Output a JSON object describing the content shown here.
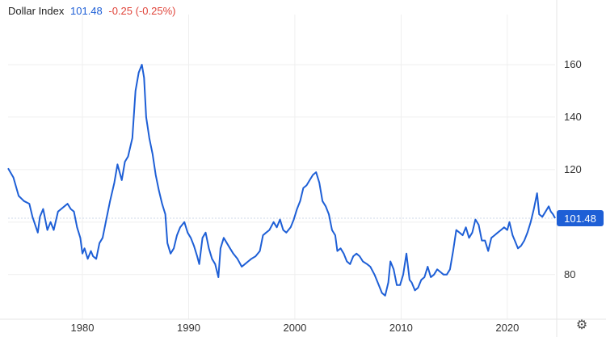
{
  "legend": {
    "title": "Dollar Index",
    "last": "101.48",
    "change": "-0.25 (-0.25%)"
  },
  "colors": {
    "line": "#1e5fd6",
    "accent": "#1e5fd6",
    "down": "#e0443a",
    "grid": "#efefef",
    "ref": "#cfd8ea"
  },
  "icons": {
    "settings": "gear-icon"
  },
  "chart_data": {
    "type": "line",
    "title": "Dollar Index",
    "xlabel": "",
    "ylabel": "",
    "xlim": [
      1973.0,
      2024.5
    ],
    "ylim": [
      63,
      176
    ],
    "x_ticks": [
      "1980",
      "1990",
      "2000",
      "2010",
      "2020"
    ],
    "y_ticks": [
      "80",
      "100",
      "120",
      "140",
      "160"
    ],
    "last_value_label": "101.48",
    "reference_level": 101.48,
    "grid": true,
    "series": [
      {
        "name": "Dollar Index",
        "points": [
          [
            1973.0,
            120.5
          ],
          [
            1973.5,
            117.0
          ],
          [
            1974.0,
            110.0
          ],
          [
            1974.5,
            108.0
          ],
          [
            1975.0,
            107.0
          ],
          [
            1975.3,
            102.0
          ],
          [
            1975.8,
            96.0
          ],
          [
            1976.0,
            102.0
          ],
          [
            1976.3,
            105.0
          ],
          [
            1976.7,
            97.0
          ],
          [
            1977.0,
            100.0
          ],
          [
            1977.3,
            97.0
          ],
          [
            1977.7,
            104.0
          ],
          [
            1978.0,
            105.0
          ],
          [
            1978.3,
            106.0
          ],
          [
            1978.6,
            107.0
          ],
          [
            1978.9,
            105.0
          ],
          [
            1979.2,
            104.0
          ],
          [
            1979.5,
            98.0
          ],
          [
            1979.8,
            94.0
          ],
          [
            1980.0,
            88.0
          ],
          [
            1980.2,
            90.0
          ],
          [
            1980.5,
            86.0
          ],
          [
            1980.8,
            89.0
          ],
          [
            1981.0,
            87.0
          ],
          [
            1981.3,
            86.0
          ],
          [
            1981.6,
            92.0
          ],
          [
            1981.9,
            94.0
          ],
          [
            1982.2,
            100.0
          ],
          [
            1982.6,
            108.0
          ],
          [
            1983.0,
            115.0
          ],
          [
            1983.3,
            122.0
          ],
          [
            1983.7,
            116.0
          ],
          [
            1984.0,
            123.0
          ],
          [
            1984.3,
            125.0
          ],
          [
            1984.7,
            132.0
          ],
          [
            1985.0,
            150.0
          ],
          [
            1985.3,
            157.0
          ],
          [
            1985.6,
            160.0
          ],
          [
            1985.8,
            155.0
          ],
          [
            1986.0,
            140.0
          ],
          [
            1986.3,
            132.0
          ],
          [
            1986.6,
            126.0
          ],
          [
            1986.9,
            118.0
          ],
          [
            1987.2,
            112.0
          ],
          [
            1987.5,
            107.0
          ],
          [
            1987.8,
            103.0
          ],
          [
            1988.0,
            92.0
          ],
          [
            1988.3,
            88.0
          ],
          [
            1988.6,
            90.0
          ],
          [
            1988.9,
            95.0
          ],
          [
            1989.2,
            98.0
          ],
          [
            1989.6,
            100.0
          ],
          [
            1989.9,
            96.0
          ],
          [
            1990.2,
            94.0
          ],
          [
            1990.5,
            91.0
          ],
          [
            1990.8,
            87.0
          ],
          [
            1991.0,
            84.0
          ],
          [
            1991.3,
            94.0
          ],
          [
            1991.6,
            96.0
          ],
          [
            1991.9,
            90.0
          ],
          [
            1992.2,
            86.0
          ],
          [
            1992.5,
            84.0
          ],
          [
            1992.8,
            79.0
          ],
          [
            1993.0,
            90.0
          ],
          [
            1993.3,
            94.0
          ],
          [
            1993.6,
            92.0
          ],
          [
            1993.9,
            90.0
          ],
          [
            1994.2,
            88.0
          ],
          [
            1994.6,
            86.0
          ],
          [
            1995.0,
            83.0
          ],
          [
            1995.3,
            84.0
          ],
          [
            1995.6,
            85.0
          ],
          [
            1995.9,
            86.0
          ],
          [
            1996.3,
            87.0
          ],
          [
            1996.7,
            89.0
          ],
          [
            1997.0,
            95.0
          ],
          [
            1997.3,
            96.0
          ],
          [
            1997.6,
            97.0
          ],
          [
            1998.0,
            100.0
          ],
          [
            1998.3,
            98.0
          ],
          [
            1998.6,
            101.0
          ],
          [
            1998.9,
            97.0
          ],
          [
            1999.2,
            96.0
          ],
          [
            1999.6,
            98.0
          ],
          [
            1999.9,
            101.0
          ],
          [
            2000.2,
            105.0
          ],
          [
            2000.5,
            108.0
          ],
          [
            2000.8,
            113.0
          ],
          [
            2001.1,
            114.0
          ],
          [
            2001.4,
            116.0
          ],
          [
            2001.7,
            118.0
          ],
          [
            2002.0,
            119.0
          ],
          [
            2002.3,
            115.0
          ],
          [
            2002.6,
            108.0
          ],
          [
            2002.9,
            106.0
          ],
          [
            2003.2,
            103.0
          ],
          [
            2003.5,
            97.0
          ],
          [
            2003.8,
            95.0
          ],
          [
            2004.0,
            89.0
          ],
          [
            2004.3,
            90.0
          ],
          [
            2004.6,
            88.0
          ],
          [
            2004.9,
            85.0
          ],
          [
            2005.2,
            84.0
          ],
          [
            2005.5,
            87.0
          ],
          [
            2005.8,
            88.0
          ],
          [
            2006.1,
            87.0
          ],
          [
            2006.4,
            85.0
          ],
          [
            2006.8,
            84.0
          ],
          [
            2007.1,
            83.0
          ],
          [
            2007.5,
            80.0
          ],
          [
            2007.9,
            76.0
          ],
          [
            2008.2,
            73.0
          ],
          [
            2008.5,
            72.0
          ],
          [
            2008.8,
            77.0
          ],
          [
            2009.0,
            85.0
          ],
          [
            2009.3,
            82.0
          ],
          [
            2009.6,
            76.0
          ],
          [
            2009.9,
            76.0
          ],
          [
            2010.2,
            80.0
          ],
          [
            2010.5,
            88.0
          ],
          [
            2010.8,
            78.0
          ],
          [
            2011.0,
            77.0
          ],
          [
            2011.3,
            74.0
          ],
          [
            2011.6,
            75.0
          ],
          [
            2011.9,
            78.0
          ],
          [
            2012.2,
            79.0
          ],
          [
            2012.5,
            83.0
          ],
          [
            2012.8,
            79.0
          ],
          [
            2013.1,
            80.0
          ],
          [
            2013.4,
            82.0
          ],
          [
            2013.7,
            81.0
          ],
          [
            2014.0,
            80.0
          ],
          [
            2014.3,
            80.0
          ],
          [
            2014.6,
            82.0
          ],
          [
            2014.9,
            89.0
          ],
          [
            2015.2,
            97.0
          ],
          [
            2015.5,
            96.0
          ],
          [
            2015.8,
            95.0
          ],
          [
            2016.1,
            98.0
          ],
          [
            2016.4,
            94.0
          ],
          [
            2016.7,
            96.0
          ],
          [
            2017.0,
            101.0
          ],
          [
            2017.3,
            99.0
          ],
          [
            2017.6,
            93.0
          ],
          [
            2017.9,
            93.0
          ],
          [
            2018.2,
            89.0
          ],
          [
            2018.5,
            94.0
          ],
          [
            2018.8,
            95.0
          ],
          [
            2019.1,
            96.0
          ],
          [
            2019.4,
            97.0
          ],
          [
            2019.7,
            98.0
          ],
          [
            2020.0,
            97.0
          ],
          [
            2020.2,
            100.0
          ],
          [
            2020.5,
            95.0
          ],
          [
            2020.8,
            92.0
          ],
          [
            2021.0,
            90.0
          ],
          [
            2021.3,
            91.0
          ],
          [
            2021.6,
            93.0
          ],
          [
            2021.9,
            96.0
          ],
          [
            2022.2,
            100.0
          ],
          [
            2022.5,
            105.0
          ],
          [
            2022.8,
            111.0
          ],
          [
            2023.0,
            103.0
          ],
          [
            2023.3,
            102.0
          ],
          [
            2023.6,
            104.0
          ],
          [
            2023.9,
            106.0
          ],
          [
            2024.1,
            104.0
          ],
          [
            2024.3,
            103.0
          ],
          [
            2024.5,
            101.48
          ]
        ]
      }
    ]
  }
}
